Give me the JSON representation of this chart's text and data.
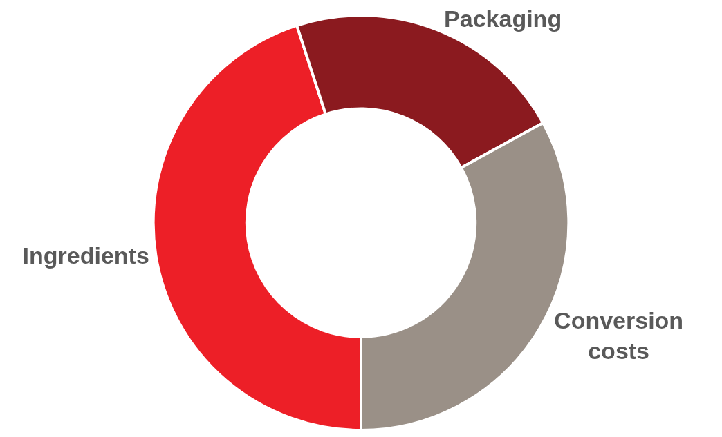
{
  "chart_data": {
    "type": "donut",
    "categories": [
      "Ingredients",
      "Packaging",
      "Conversion costs"
    ],
    "values": [
      45,
      22,
      33
    ],
    "colors": [
      "#ed1f27",
      "#8b1a1f",
      "#9a9087"
    ],
    "legend": false
  }
}
